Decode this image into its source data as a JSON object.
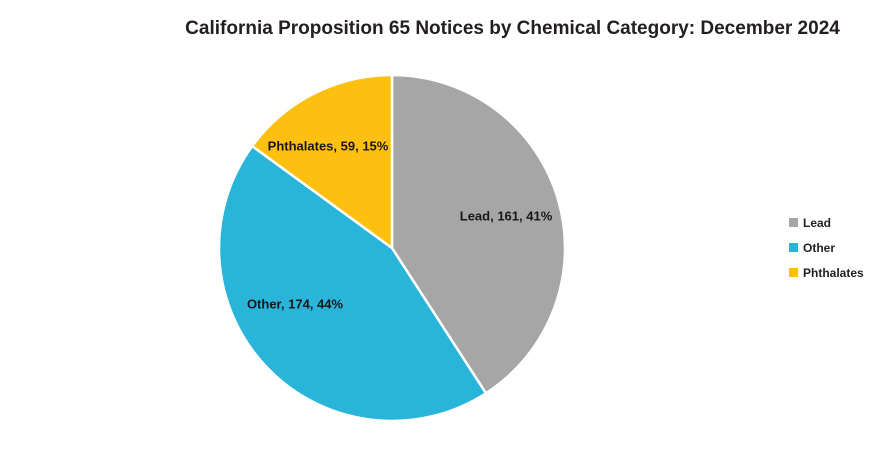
{
  "title": "California Proposition 65 Notices by Chemical Category: December 2024",
  "chart_data": {
    "type": "pie",
    "title": "California Proposition 65 Notices by Chemical Category: December 2024",
    "categories": [
      "Lead",
      "Other",
      "Phthalates"
    ],
    "values": [
      161,
      174,
      59
    ],
    "percents": [
      41,
      44,
      15
    ],
    "colors": [
      "#a6a6a6",
      "#29b5d9",
      "#fdc010"
    ],
    "slice_labels": [
      "Lead, 161, 41%",
      "Other, 174, 44%",
      "Phthalates, 59, 15%"
    ],
    "label_color": "#1a1718",
    "start_angle_deg": 0,
    "direction": "clockwise",
    "legend_position": "right"
  },
  "legend": {
    "items": [
      {
        "label": "Lead",
        "color": "#a6a6a6"
      },
      {
        "label": "Other",
        "color": "#29b5d9"
      },
      {
        "label": "Phthalates",
        "color": "#fdc010"
      }
    ]
  }
}
